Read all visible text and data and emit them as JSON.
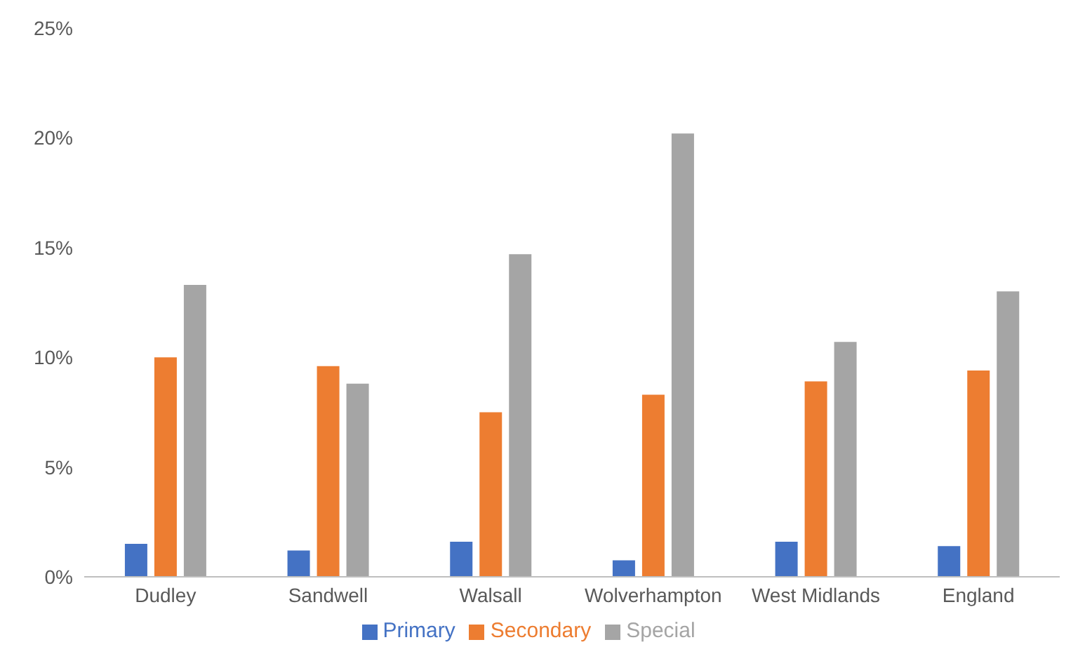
{
  "chart_data": {
    "type": "bar",
    "categories": [
      "Dudley",
      "Sandwell",
      "Walsall",
      "Wolverhampton",
      "West Midlands",
      "England"
    ],
    "series": [
      {
        "name": "Primary",
        "color": "#4472c4",
        "values": [
          1.5,
          1.2,
          1.6,
          0.75,
          1.6,
          1.4
        ]
      },
      {
        "name": "Secondary",
        "color": "#ed7d31",
        "values": [
          10.0,
          9.6,
          7.5,
          8.3,
          8.9,
          9.4
        ]
      },
      {
        "name": "Special",
        "color": "#a5a5a5",
        "values": [
          13.3,
          8.8,
          14.7,
          20.2,
          10.7,
          13.0
        ]
      }
    ],
    "ylim": [
      0,
      25
    ],
    "yticks": [
      {
        "value": 0,
        "label": "0%"
      },
      {
        "value": 5,
        "label": "5%"
      },
      {
        "value": 10,
        "label": "10%"
      },
      {
        "value": 15,
        "label": "15%"
      },
      {
        "value": 20,
        "label": "20%"
      },
      {
        "value": 25,
        "label": "25%"
      }
    ],
    "grid": false,
    "legend": "bottom"
  }
}
